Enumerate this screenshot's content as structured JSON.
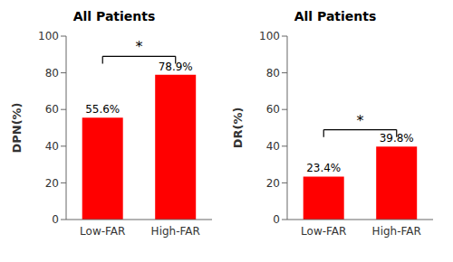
{
  "chart_data": [
    {
      "type": "bar",
      "title": "All Patients",
      "y_label": "DPN(%)",
      "categories": [
        "Low-FAR",
        "High-FAR"
      ],
      "values": [
        55.6,
        78.9
      ],
      "value_labels": [
        "55.6%",
        "78.9%"
      ],
      "data_labels": true,
      "color": "#FF0000",
      "ylim": [
        0,
        100
      ],
      "yticks": [
        0,
        20,
        40,
        60,
        80,
        100
      ],
      "grid": false,
      "annotations": [
        {
          "text": "*",
          "from": "Low-FAR",
          "to": "High-FAR",
          "y": 89,
          "y_end": 85
        }
      ]
    },
    {
      "type": "bar",
      "title": "All Patients",
      "y_label": "DR(%)",
      "categories": [
        "Low-FAR",
        "High-FAR"
      ],
      "values": [
        23.4,
        39.8
      ],
      "value_labels": [
        "23.4%",
        "39.8%"
      ],
      "data_labels": true,
      "color": "#FF0000",
      "ylim": [
        0,
        100
      ],
      "yticks": [
        0,
        20,
        40,
        60,
        80,
        100
      ],
      "grid": false,
      "annotations": [
        {
          "text": "*",
          "from": "Low-FAR",
          "to": "High-FAR",
          "y": 49,
          "y_end": 45
        }
      ]
    }
  ]
}
